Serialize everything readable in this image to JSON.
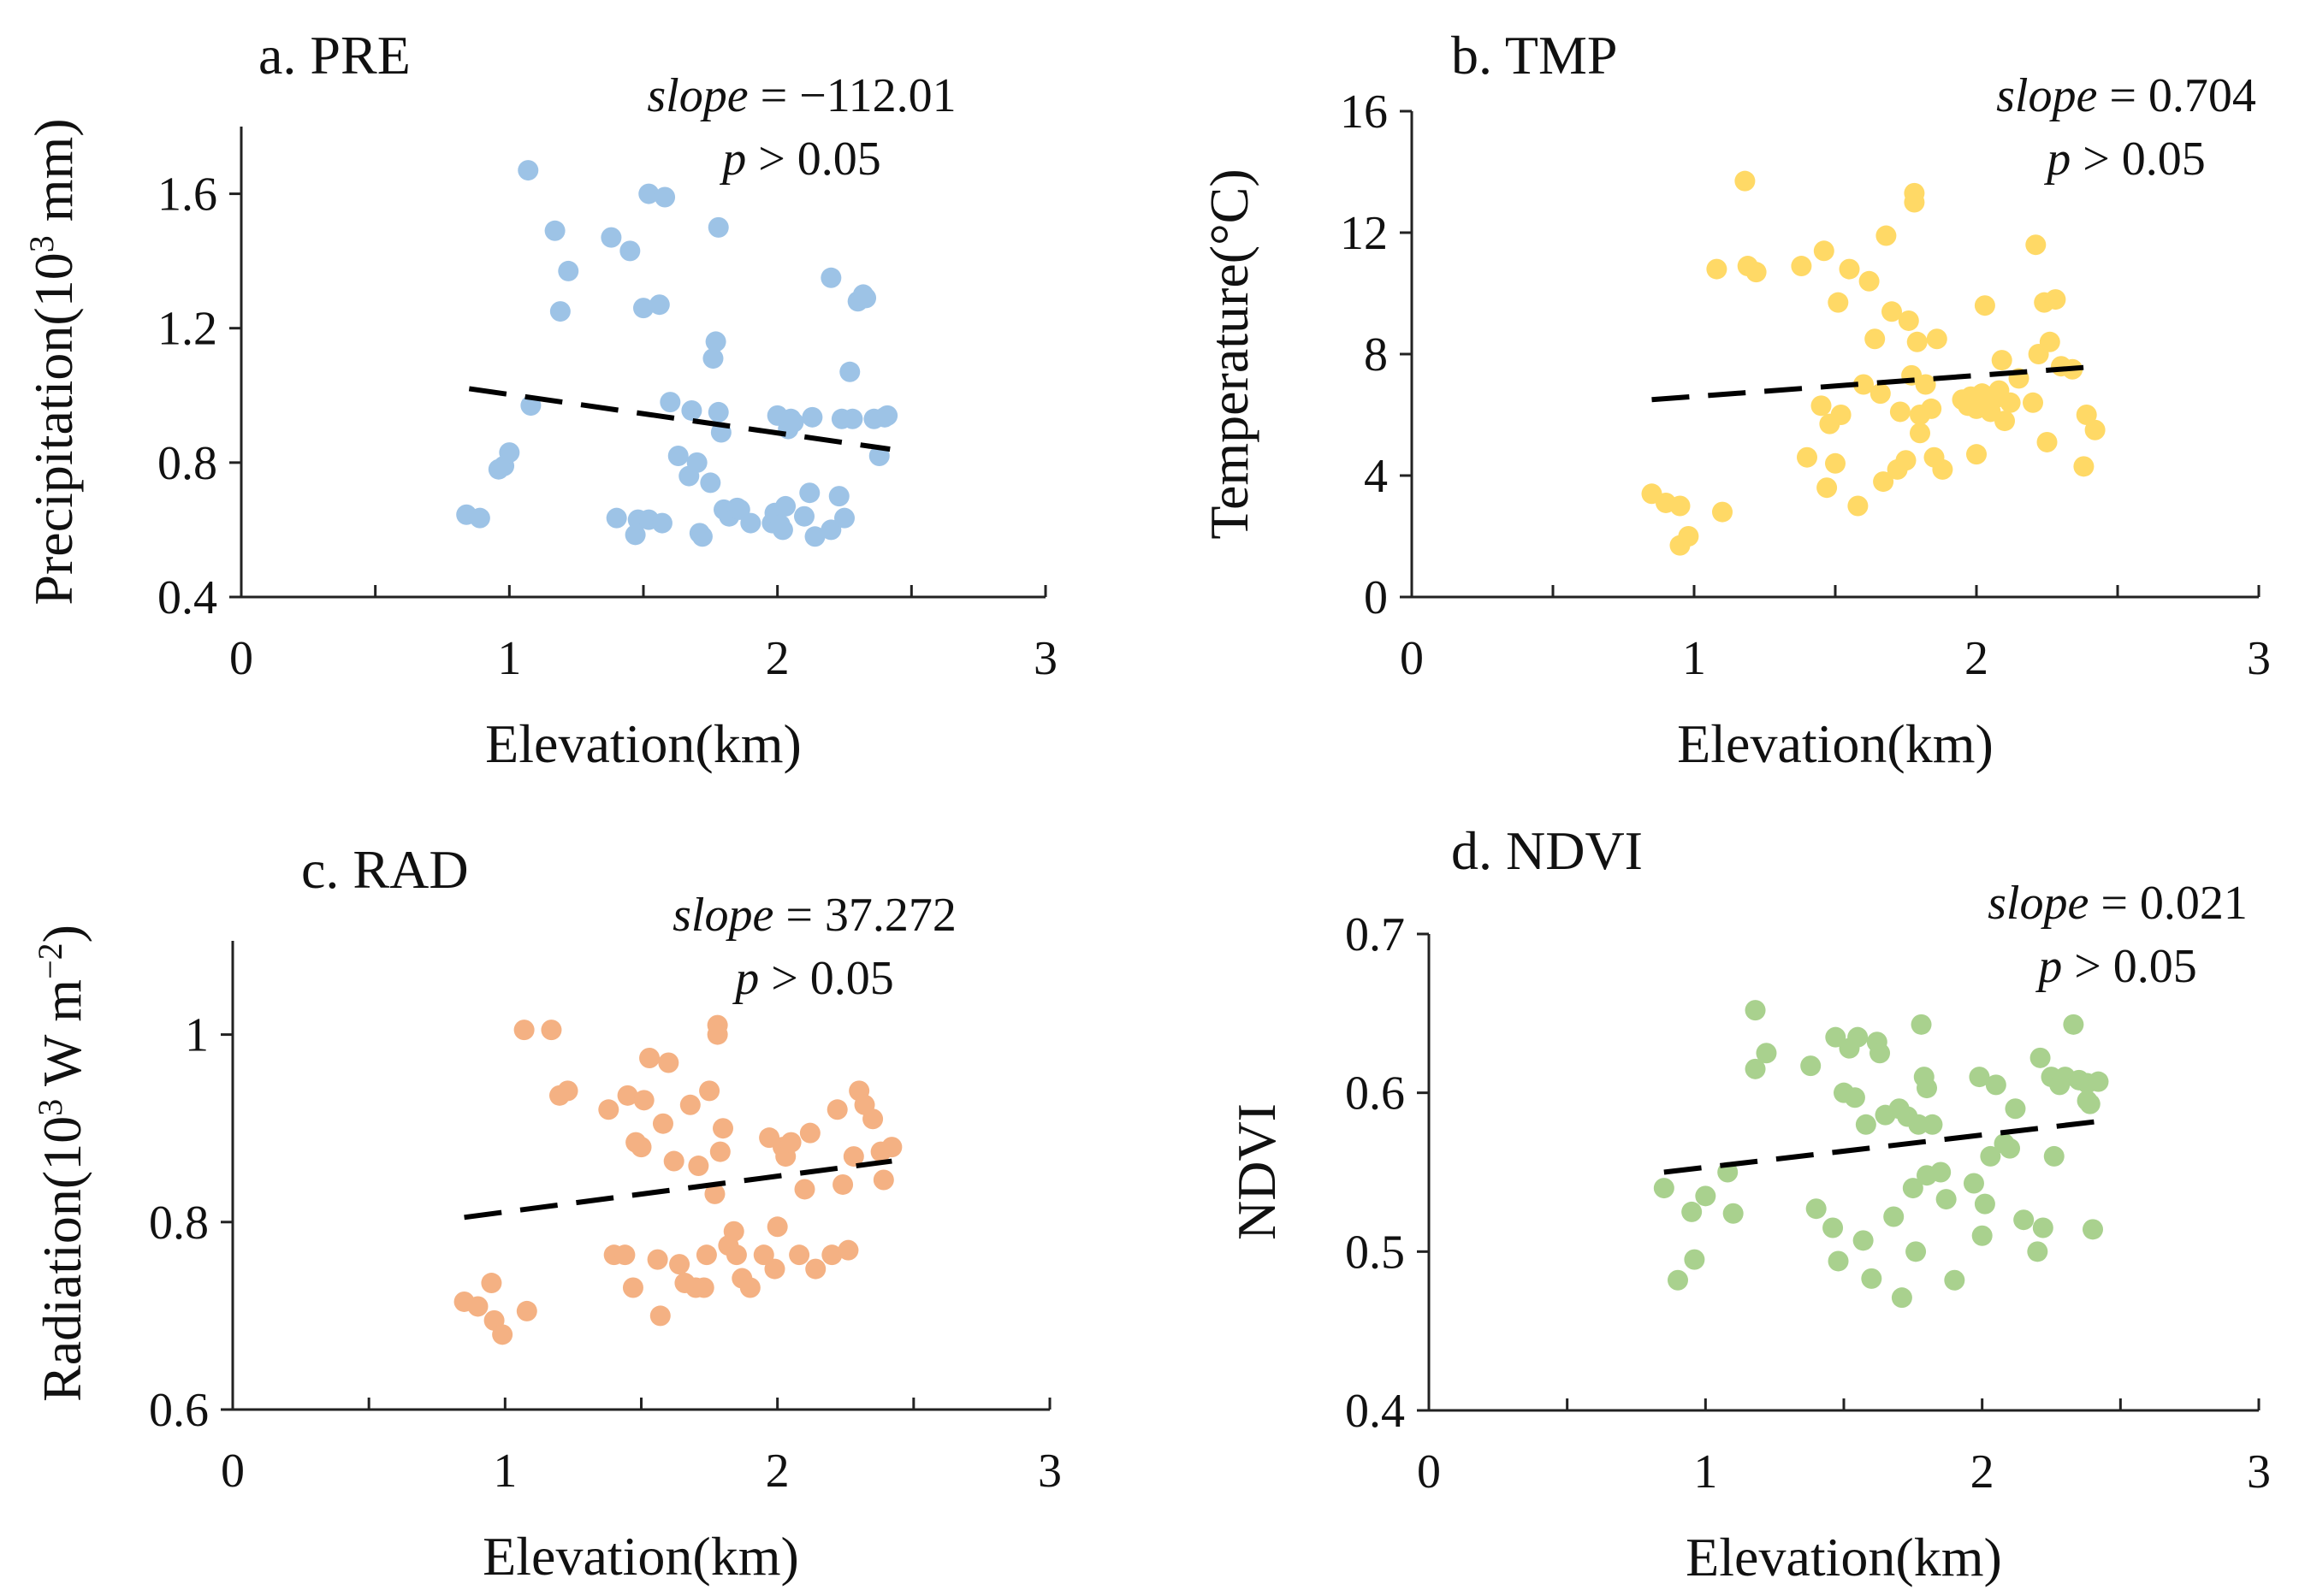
{
  "chart_data": [
    {
      "type": "scatter",
      "panel_title": "a. PRE",
      "xlabel": "Elevation(km)",
      "ylabel_prefix": "Precipitation(10",
      "ylabel_sup": "3",
      "ylabel_suffix": " mm)",
      "xlim": [
        0,
        3
      ],
      "ylim": [
        0.4,
        1.8
      ],
      "xticks": [
        "0",
        "1",
        "2",
        "3"
      ],
      "yticks": [
        "0.4",
        "0.8",
        "1.2",
        "1.6"
      ],
      "ytick_values": [
        0.4,
        0.8,
        1.2,
        1.6
      ],
      "color": "#9DC3E6",
      "slope_label": "slope",
      "slope_value": " = −112.01",
      "p_label": "p",
      "p_value": " > 0.05",
      "trend": {
        "x": [
          0.85,
          2.42
        ],
        "y": [
          1.02,
          0.84
        ]
      },
      "points": [
        [
          0.84,
          0.645
        ],
        [
          0.89,
          0.635
        ],
        [
          0.96,
          0.78
        ],
        [
          0.98,
          0.79
        ],
        [
          1.0,
          0.83
        ],
        [
          1.08,
          0.97
        ],
        [
          1.07,
          1.67
        ],
        [
          1.17,
          1.49
        ],
        [
          1.19,
          1.25
        ],
        [
          1.22,
          1.37
        ],
        [
          1.38,
          1.47
        ],
        [
          1.45,
          1.43
        ],
        [
          1.5,
          1.26
        ],
        [
          1.52,
          1.6
        ],
        [
          1.56,
          1.27
        ],
        [
          1.58,
          1.59
        ],
        [
          1.4,
          0.635
        ],
        [
          1.47,
          0.585
        ],
        [
          1.48,
          0.63
        ],
        [
          1.52,
          0.63
        ],
        [
          1.57,
          0.62
        ],
        [
          1.6,
          0.98
        ],
        [
          1.63,
          0.82
        ],
        [
          1.67,
          0.76
        ],
        [
          1.68,
          0.955
        ],
        [
          1.7,
          0.8
        ],
        [
          1.72,
          0.58
        ],
        [
          1.71,
          0.59
        ],
        [
          1.75,
          0.74
        ],
        [
          1.76,
          1.11
        ],
        [
          1.77,
          1.16
        ],
        [
          1.78,
          1.5
        ],
        [
          1.78,
          0.95
        ],
        [
          1.79,
          0.89
        ],
        [
          1.8,
          0.66
        ],
        [
          1.82,
          0.64
        ],
        [
          1.85,
          0.665
        ],
        [
          1.86,
          0.66
        ],
        [
          1.9,
          0.62
        ],
        [
          1.98,
          0.62
        ],
        [
          1.99,
          0.65
        ],
        [
          2.0,
          0.94
        ],
        [
          2.01,
          0.615
        ],
        [
          2.02,
          0.6
        ],
        [
          2.03,
          0.67
        ],
        [
          2.04,
          0.9
        ],
        [
          2.05,
          0.93
        ],
        [
          2.06,
          0.92
        ],
        [
          2.1,
          0.64
        ],
        [
          2.12,
          0.71
        ],
        [
          2.13,
          0.935
        ],
        [
          2.14,
          0.58
        ],
        [
          2.2,
          0.6
        ],
        [
          2.2,
          1.35
        ],
        [
          2.23,
          0.7
        ],
        [
          2.24,
          0.93
        ],
        [
          2.25,
          0.635
        ],
        [
          2.27,
          1.07
        ],
        [
          2.28,
          0.93
        ],
        [
          2.3,
          1.28
        ],
        [
          2.32,
          1.3
        ],
        [
          2.33,
          1.29
        ],
        [
          2.36,
          0.93
        ],
        [
          2.38,
          0.82
        ],
        [
          2.4,
          0.935
        ],
        [
          2.41,
          0.94
        ]
      ]
    },
    {
      "type": "scatter",
      "panel_title": "b. TMP",
      "xlabel": "Elevation(km)",
      "ylabel_prefix": "Temperature(°C)",
      "ylabel_sup": "",
      "ylabel_suffix": "",
      "xlim": [
        0,
        3
      ],
      "ylim": [
        0,
        16
      ],
      "xticks": [
        "0",
        "1",
        "2",
        "3"
      ],
      "yticks": [
        "0",
        "4",
        "8",
        "12",
        "16"
      ],
      "ytick_values": [
        0,
        4,
        8,
        12,
        16
      ],
      "color": "#FFD966",
      "slope_label": "slope",
      "slope_value": " = 0.704",
      "p_label": "p",
      "p_value": " > 0.05",
      "trend": {
        "x": [
          0.85,
          2.44
        ],
        "y": [
          6.5,
          7.6
        ]
      },
      "points": [
        [
          0.85,
          3.4
        ],
        [
          0.9,
          3.1
        ],
        [
          0.95,
          3.0
        ],
        [
          0.95,
          1.7
        ],
        [
          0.98,
          2.0
        ],
        [
          1.1,
          2.8
        ],
        [
          1.08,
          10.8
        ],
        [
          1.18,
          13.7
        ],
        [
          1.19,
          10.9
        ],
        [
          1.22,
          10.7
        ],
        [
          1.38,
          10.9
        ],
        [
          1.4,
          4.6
        ],
        [
          1.45,
          6.3
        ],
        [
          1.46,
          11.4
        ],
        [
          1.47,
          3.6
        ],
        [
          1.48,
          5.7
        ],
        [
          1.5,
          4.4
        ],
        [
          1.51,
          9.7
        ],
        [
          1.52,
          6.0
        ],
        [
          1.55,
          10.8
        ],
        [
          1.58,
          3.0
        ],
        [
          1.6,
          7.0
        ],
        [
          1.62,
          10.4
        ],
        [
          1.64,
          8.5
        ],
        [
          1.66,
          6.7
        ],
        [
          1.67,
          3.8
        ],
        [
          1.68,
          11.9
        ],
        [
          1.7,
          9.4
        ],
        [
          1.72,
          4.2
        ],
        [
          1.73,
          6.1
        ],
        [
          1.75,
          4.5
        ],
        [
          1.76,
          9.1
        ],
        [
          1.77,
          7.3
        ],
        [
          1.78,
          13.0
        ],
        [
          1.78,
          13.3
        ],
        [
          1.79,
          8.4
        ],
        [
          1.8,
          6.0
        ],
        [
          1.8,
          5.4
        ],
        [
          1.82,
          7.0
        ],
        [
          1.84,
          6.2
        ],
        [
          1.85,
          4.6
        ],
        [
          1.86,
          8.5
        ],
        [
          1.88,
          4.2
        ],
        [
          1.95,
          6.5
        ],
        [
          1.97,
          6.3
        ],
        [
          1.98,
          6.6
        ],
        [
          2.0,
          4.7
        ],
        [
          2.0,
          6.2
        ],
        [
          2.02,
          6.7
        ],
        [
          2.03,
          9.6
        ],
        [
          2.05,
          6.1
        ],
        [
          2.06,
          6.5
        ],
        [
          2.08,
          6.8
        ],
        [
          2.09,
          7.8
        ],
        [
          2.1,
          5.8
        ],
        [
          2.12,
          6.4
        ],
        [
          2.15,
          7.2
        ],
        [
          2.2,
          6.4
        ],
        [
          2.21,
          11.6
        ],
        [
          2.22,
          8.0
        ],
        [
          2.24,
          9.7
        ],
        [
          2.25,
          5.1
        ],
        [
          2.26,
          8.4
        ],
        [
          2.28,
          9.8
        ],
        [
          2.3,
          7.6
        ],
        [
          2.34,
          7.5
        ],
        [
          2.38,
          4.3
        ],
        [
          2.39,
          6.0
        ],
        [
          2.42,
          5.5
        ]
      ]
    },
    {
      "type": "scatter",
      "panel_title": "c. RAD",
      "xlabel": "Elevation(km)",
      "ylabel_prefix": "Radiation(10",
      "ylabel_sup": "3",
      "ylabel_suffix": " W m",
      "ylabel_sup2": "−2",
      "ylabel_suffix2": ")",
      "xlim": [
        0,
        3
      ],
      "ylim": [
        0.6,
        1.1
      ],
      "xticks": [
        "0",
        "1",
        "2",
        "3"
      ],
      "yticks": [
        "0.6",
        "0.8",
        "1"
      ],
      "ytick_values": [
        0.6,
        0.8,
        1.0
      ],
      "color": "#F4B183",
      "slope_label": "slope",
      "slope_value": " = 37.272",
      "p_label": "p",
      "p_value": " > 0.05",
      "trend": {
        "x": [
          0.85,
          2.42
        ],
        "y": [
          0.805,
          0.865
        ]
      },
      "points": [
        [
          0.85,
          0.715
        ],
        [
          0.9,
          0.71
        ],
        [
          0.95,
          0.735
        ],
        [
          0.96,
          0.695
        ],
        [
          0.99,
          0.68
        ],
        [
          1.08,
          0.705
        ],
        [
          1.07,
          1.005
        ],
        [
          1.17,
          1.005
        ],
        [
          1.2,
          0.935
        ],
        [
          1.23,
          0.94
        ],
        [
          1.38,
          0.92
        ],
        [
          1.4,
          0.765
        ],
        [
          1.44,
          0.765
        ],
        [
          1.45,
          0.935
        ],
        [
          1.47,
          0.73
        ],
        [
          1.48,
          0.885
        ],
        [
          1.5,
          0.88
        ],
        [
          1.51,
          0.93
        ],
        [
          1.53,
          0.975
        ],
        [
          1.56,
          0.76
        ],
        [
          1.57,
          0.7
        ],
        [
          1.58,
          0.905
        ],
        [
          1.6,
          0.97
        ],
        [
          1.62,
          0.865
        ],
        [
          1.64,
          0.755
        ],
        [
          1.66,
          0.735
        ],
        [
          1.68,
          0.925
        ],
        [
          1.7,
          0.73
        ],
        [
          1.71,
          0.86
        ],
        [
          1.73,
          0.73
        ],
        [
          1.74,
          0.765
        ],
        [
          1.75,
          0.94
        ],
        [
          1.77,
          0.83
        ],
        [
          1.78,
          1.01
        ],
        [
          1.78,
          1.0
        ],
        [
          1.79,
          0.875
        ],
        [
          1.8,
          0.9
        ],
        [
          1.82,
          0.775
        ],
        [
          1.84,
          0.79
        ],
        [
          1.85,
          0.765
        ],
        [
          1.87,
          0.74
        ],
        [
          1.9,
          0.73
        ],
        [
          1.95,
          0.765
        ],
        [
          1.97,
          0.89
        ],
        [
          1.99,
          0.75
        ],
        [
          2.0,
          0.795
        ],
        [
          2.02,
          0.88
        ],
        [
          2.03,
          0.87
        ],
        [
          2.05,
          0.885
        ],
        [
          2.08,
          0.765
        ],
        [
          2.1,
          0.835
        ],
        [
          2.12,
          0.895
        ],
        [
          2.14,
          0.75
        ],
        [
          2.2,
          0.765
        ],
        [
          2.22,
          0.92
        ],
        [
          2.24,
          0.84
        ],
        [
          2.26,
          0.77
        ],
        [
          2.28,
          0.87
        ],
        [
          2.3,
          0.94
        ],
        [
          2.32,
          0.925
        ],
        [
          2.35,
          0.91
        ],
        [
          2.38,
          0.875
        ],
        [
          2.39,
          0.845
        ],
        [
          2.42,
          0.88
        ]
      ]
    },
    {
      "type": "scatter",
      "panel_title": "d. NDVI",
      "xlabel": "Elevation(km)",
      "ylabel_prefix": "NDVI",
      "ylabel_sup": "",
      "ylabel_suffix": "",
      "xlim": [
        0,
        3
      ],
      "ylim": [
        0.4,
        0.7
      ],
      "xticks": [
        "0",
        "1",
        "2",
        "3"
      ],
      "yticks": [
        "0.4",
        "0.5",
        "0.6",
        "0.7"
      ],
      "ytick_values": [
        0.4,
        0.5,
        0.6,
        0.7
      ],
      "color": "#A9D18E",
      "slope_label": "slope",
      "slope_value": " = 0.021",
      "p_label": "p",
      "p_value": " > 0.05",
      "trend": {
        "x": [
          0.85,
          2.42
        ],
        "y": [
          0.55,
          0.582
        ]
      },
      "points": [
        [
          0.85,
          0.54
        ],
        [
          0.9,
          0.482
        ],
        [
          0.95,
          0.525
        ],
        [
          0.96,
          0.495
        ],
        [
          1.0,
          0.535
        ],
        [
          1.08,
          0.55
        ],
        [
          1.1,
          0.524
        ],
        [
          1.18,
          0.652
        ],
        [
          1.18,
          0.615
        ],
        [
          1.22,
          0.625
        ],
        [
          1.38,
          0.617
        ],
        [
          1.4,
          0.527
        ],
        [
          1.46,
          0.515
        ],
        [
          1.47,
          0.635
        ],
        [
          1.48,
          0.494
        ],
        [
          1.5,
          0.6
        ],
        [
          1.52,
          0.628
        ],
        [
          1.54,
          0.597
        ],
        [
          1.55,
          0.635
        ],
        [
          1.57,
          0.507
        ],
        [
          1.58,
          0.58
        ],
        [
          1.6,
          0.483
        ],
        [
          1.62,
          0.632
        ],
        [
          1.63,
          0.625
        ],
        [
          1.65,
          0.586
        ],
        [
          1.68,
          0.522
        ],
        [
          1.7,
          0.59
        ],
        [
          1.71,
          0.471
        ],
        [
          1.73,
          0.585
        ],
        [
          1.75,
          0.54
        ],
        [
          1.76,
          0.5
        ],
        [
          1.77,
          0.58
        ],
        [
          1.78,
          0.643
        ],
        [
          1.79,
          0.61
        ],
        [
          1.8,
          0.603
        ],
        [
          1.8,
          0.548
        ],
        [
          1.82,
          0.58
        ],
        [
          1.85,
          0.55
        ],
        [
          1.87,
          0.533
        ],
        [
          1.9,
          0.482
        ],
        [
          1.97,
          0.543
        ],
        [
          1.99,
          0.61
        ],
        [
          2.0,
          0.51
        ],
        [
          2.01,
          0.53
        ],
        [
          2.03,
          0.56
        ],
        [
          2.05,
          0.605
        ],
        [
          2.08,
          0.568
        ],
        [
          2.1,
          0.565
        ],
        [
          2.12,
          0.59
        ],
        [
          2.15,
          0.52
        ],
        [
          2.2,
          0.5
        ],
        [
          2.21,
          0.622
        ],
        [
          2.22,
          0.515
        ],
        [
          2.25,
          0.61
        ],
        [
          2.26,
          0.56
        ],
        [
          2.28,
          0.605
        ],
        [
          2.3,
          0.61
        ],
        [
          2.33,
          0.643
        ],
        [
          2.35,
          0.608
        ],
        [
          2.38,
          0.606
        ],
        [
          2.38,
          0.595
        ],
        [
          2.39,
          0.593
        ],
        [
          2.4,
          0.514
        ],
        [
          2.42,
          0.607
        ]
      ]
    }
  ]
}
